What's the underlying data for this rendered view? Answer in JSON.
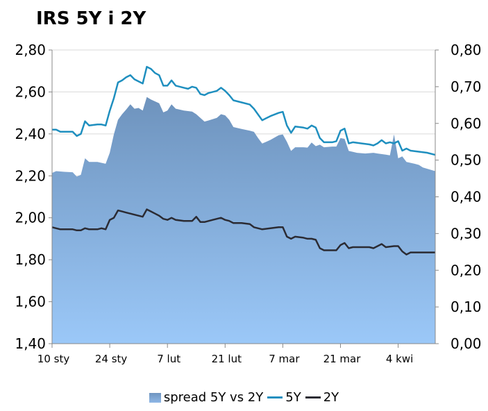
{
  "chart_data": {
    "type": "area+line",
    "title": "IRS 5Y i 2Y",
    "left_axis": {
      "min": 1.4,
      "max": 2.8,
      "step": 0.2,
      "tick_labels": [
        "1,40",
        "1,60",
        "1,80",
        "2,00",
        "2,20",
        "2,40",
        "2,60",
        "2,80"
      ]
    },
    "right_axis": {
      "min": 0.0,
      "max": 0.8,
      "step": 0.1,
      "tick_labels": [
        "0,00",
        "0,10",
        "0,20",
        "0,30",
        "0,40",
        "0,50",
        "0,60",
        "0,70",
        "0,80"
      ]
    },
    "x_tick_labels": [
      "10 sty",
      "24 sty",
      "7 lut",
      "21 lut",
      "7 mar",
      "21 mar",
      "4 kwi"
    ],
    "x_tick_days": [
      0,
      14,
      28,
      42,
      56,
      70,
      84
    ],
    "x_range_days": [
      0,
      93
    ],
    "legend": [
      "spread 5Y vs 2Y",
      "5Y",
      "2Y"
    ],
    "colors": {
      "spread": "#8ab0dc",
      "y5": "#1f8fbf",
      "y2": "#2b2b33"
    },
    "series": [
      {
        "name": "spread 5Y vs 2Y",
        "axis": "right",
        "points": [
          [
            0,
            0.465
          ],
          [
            1,
            0.47
          ],
          [
            3,
            0.468
          ],
          [
            5,
            0.467
          ],
          [
            6,
            0.455
          ],
          [
            7,
            0.46
          ],
          [
            8,
            0.505
          ],
          [
            9,
            0.495
          ],
          [
            11,
            0.495
          ],
          [
            13,
            0.49
          ],
          [
            14,
            0.52
          ],
          [
            15,
            0.57
          ],
          [
            16,
            0.61
          ],
          [
            17,
            0.625
          ],
          [
            18,
            0.638
          ],
          [
            19,
            0.652
          ],
          [
            20,
            0.64
          ],
          [
            21,
            0.642
          ],
          [
            22,
            0.635
          ],
          [
            23,
            0.672
          ],
          [
            24,
            0.665
          ],
          [
            26,
            0.655
          ],
          [
            27,
            0.63
          ],
          [
            28,
            0.635
          ],
          [
            29,
            0.652
          ],
          [
            30,
            0.64
          ],
          [
            32,
            0.635
          ],
          [
            34,
            0.632
          ],
          [
            35,
            0.625
          ],
          [
            37,
            0.605
          ],
          [
            38,
            0.608
          ],
          [
            40,
            0.615
          ],
          [
            41,
            0.625
          ],
          [
            42,
            0.622
          ],
          [
            43,
            0.61
          ],
          [
            44,
            0.59
          ],
          [
            46,
            0.585
          ],
          [
            48,
            0.58
          ],
          [
            49,
            0.577
          ],
          [
            50,
            0.56
          ],
          [
            51,
            0.545
          ],
          [
            53,
            0.555
          ],
          [
            55,
            0.568
          ],
          [
            56,
            0.57
          ],
          [
            57,
            0.55
          ],
          [
            58,
            0.525
          ],
          [
            59,
            0.535
          ],
          [
            61,
            0.535
          ],
          [
            62,
            0.534
          ],
          [
            63,
            0.548
          ],
          [
            64,
            0.538
          ],
          [
            65,
            0.542
          ],
          [
            66,
            0.535
          ],
          [
            68,
            0.537
          ],
          [
            69,
            0.537
          ],
          [
            70,
            0.56
          ],
          [
            71,
            0.558
          ],
          [
            72,
            0.525
          ],
          [
            74,
            0.52
          ],
          [
            76,
            0.518
          ],
          [
            78,
            0.52
          ],
          [
            79,
            0.518
          ],
          [
            81,
            0.515
          ],
          [
            82,
            0.513
          ],
          [
            83,
            0.57
          ],
          [
            84,
            0.505
          ],
          [
            85,
            0.51
          ],
          [
            86,
            0.495
          ],
          [
            88,
            0.49
          ],
          [
            89,
            0.487
          ],
          [
            90,
            0.48
          ],
          [
            93,
            0.47
          ]
        ]
      },
      {
        "name": "5Y",
        "axis": "left",
        "points": [
          [
            0,
            2.42
          ],
          [
            1,
            2.42
          ],
          [
            2,
            2.41
          ],
          [
            4,
            2.41
          ],
          [
            5,
            2.41
          ],
          [
            6,
            2.39
          ],
          [
            7,
            2.4
          ],
          [
            8,
            2.46
          ],
          [
            9,
            2.44
          ],
          [
            11,
            2.445
          ],
          [
            12,
            2.445
          ],
          [
            13,
            2.44
          ],
          [
            14,
            2.51
          ],
          [
            15,
            2.57
          ],
          [
            16,
            2.645
          ],
          [
            17,
            2.655
          ],
          [
            18,
            2.67
          ],
          [
            19,
            2.68
          ],
          [
            20,
            2.66
          ],
          [
            21,
            2.65
          ],
          [
            22,
            2.64
          ],
          [
            23,
            2.72
          ],
          [
            24,
            2.71
          ],
          [
            25,
            2.69
          ],
          [
            26,
            2.68
          ],
          [
            27,
            2.63
          ],
          [
            28,
            2.63
          ],
          [
            29,
            2.655
          ],
          [
            30,
            2.63
          ],
          [
            32,
            2.62
          ],
          [
            33,
            2.615
          ],
          [
            34,
            2.625
          ],
          [
            35,
            2.62
          ],
          [
            36,
            2.59
          ],
          [
            37,
            2.585
          ],
          [
            38,
            2.595
          ],
          [
            40,
            2.605
          ],
          [
            41,
            2.62
          ],
          [
            42,
            2.605
          ],
          [
            43,
            2.585
          ],
          [
            44,
            2.56
          ],
          [
            46,
            2.55
          ],
          [
            48,
            2.54
          ],
          [
            49,
            2.52
          ],
          [
            51,
            2.465
          ],
          [
            53,
            2.485
          ],
          [
            55,
            2.5
          ],
          [
            56,
            2.505
          ],
          [
            57,
            2.44
          ],
          [
            58,
            2.405
          ],
          [
            59,
            2.435
          ],
          [
            61,
            2.43
          ],
          [
            62,
            2.425
          ],
          [
            63,
            2.44
          ],
          [
            64,
            2.43
          ],
          [
            65,
            2.38
          ],
          [
            66,
            2.36
          ],
          [
            68,
            2.36
          ],
          [
            69,
            2.365
          ],
          [
            70,
            2.415
          ],
          [
            71,
            2.425
          ],
          [
            72,
            2.355
          ],
          [
            73,
            2.36
          ],
          [
            75,
            2.355
          ],
          [
            77,
            2.35
          ],
          [
            78,
            2.345
          ],
          [
            79,
            2.355
          ],
          [
            80,
            2.37
          ],
          [
            81,
            2.355
          ],
          [
            82,
            2.36
          ],
          [
            83,
            2.355
          ],
          [
            84,
            2.365
          ],
          [
            85,
            2.32
          ],
          [
            86,
            2.33
          ],
          [
            87,
            2.32
          ],
          [
            89,
            2.315
          ],
          [
            91,
            2.31
          ],
          [
            93,
            2.3
          ]
        ]
      },
      {
        "name": "2Y",
        "axis": "left",
        "points": [
          [
            0,
            1.955
          ],
          [
            1,
            1.95
          ],
          [
            2,
            1.945
          ],
          [
            4,
            1.945
          ],
          [
            5,
            1.945
          ],
          [
            6,
            1.94
          ],
          [
            7,
            1.94
          ],
          [
            8,
            1.95
          ],
          [
            9,
            1.945
          ],
          [
            11,
            1.945
          ],
          [
            12,
            1.95
          ],
          [
            13,
            1.945
          ],
          [
            14,
            1.99
          ],
          [
            15,
            2.0
          ],
          [
            16,
            2.035
          ],
          [
            17,
            2.03
          ],
          [
            18,
            2.025
          ],
          [
            19,
            2.02
          ],
          [
            20,
            2.015
          ],
          [
            21,
            2.01
          ],
          [
            22,
            2.005
          ],
          [
            23,
            2.04
          ],
          [
            24,
            2.03
          ],
          [
            25,
            2.02
          ],
          [
            26,
            2.01
          ],
          [
            27,
            1.995
          ],
          [
            28,
            1.99
          ],
          [
            29,
            2.0
          ],
          [
            30,
            1.99
          ],
          [
            32,
            1.985
          ],
          [
            34,
            1.985
          ],
          [
            35,
            2.005
          ],
          [
            36,
            1.98
          ],
          [
            37,
            1.98
          ],
          [
            39,
            1.99
          ],
          [
            41,
            2.0
          ],
          [
            42,
            1.99
          ],
          [
            43,
            1.985
          ],
          [
            44,
            1.975
          ],
          [
            46,
            1.975
          ],
          [
            48,
            1.97
          ],
          [
            49,
            1.955
          ],
          [
            50,
            1.95
          ],
          [
            51,
            1.945
          ],
          [
            53,
            1.95
          ],
          [
            55,
            1.955
          ],
          [
            56,
            1.955
          ],
          [
            57,
            1.91
          ],
          [
            58,
            1.9
          ],
          [
            59,
            1.91
          ],
          [
            61,
            1.905
          ],
          [
            62,
            1.9
          ],
          [
            63,
            1.9
          ],
          [
            64,
            1.895
          ],
          [
            65,
            1.855
          ],
          [
            66,
            1.845
          ],
          [
            68,
            1.845
          ],
          [
            69,
            1.845
          ],
          [
            70,
            1.87
          ],
          [
            71,
            1.88
          ],
          [
            72,
            1.855
          ],
          [
            73,
            1.86
          ],
          [
            75,
            1.86
          ],
          [
            77,
            1.86
          ],
          [
            78,
            1.855
          ],
          [
            79,
            1.865
          ],
          [
            80,
            1.875
          ],
          [
            81,
            1.86
          ],
          [
            83,
            1.865
          ],
          [
            84,
            1.865
          ],
          [
            85,
            1.84
          ],
          [
            86,
            1.825
          ],
          [
            87,
            1.835
          ],
          [
            89,
            1.835
          ],
          [
            91,
            1.835
          ],
          [
            93,
            1.835
          ]
        ]
      }
    ]
  }
}
